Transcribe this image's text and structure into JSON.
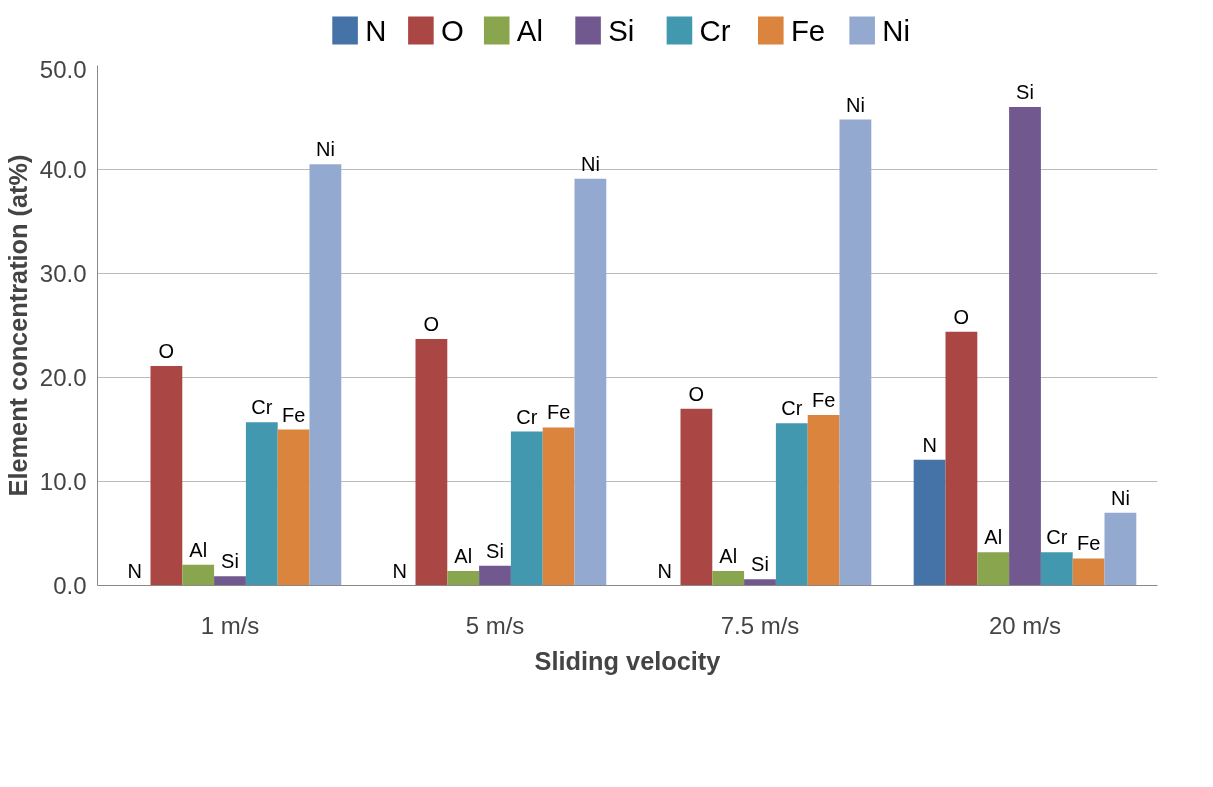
{
  "chart_data": {
    "type": "bar",
    "xlabel": "Sliding velocity",
    "ylabel": "Element concentration (at%)",
    "categories": [
      "1 m/s",
      "5 m/s",
      "7.5 m/s",
      "20 m/s"
    ],
    "series": [
      {
        "name": "N",
        "color": "#4572a7",
        "values": [
          0,
          0,
          0,
          12.1
        ]
      },
      {
        "name": "O",
        "color": "#aa4643",
        "values": [
          21.1,
          23.7,
          17.0,
          24.4
        ]
      },
      {
        "name": "Al",
        "color": "#89a54e",
        "values": [
          2.0,
          1.4,
          1.4,
          3.2
        ]
      },
      {
        "name": "Si",
        "color": "#71588f",
        "values": [
          0.9,
          1.9,
          0.6,
          46.0
        ]
      },
      {
        "name": "Cr",
        "color": "#4198af",
        "values": [
          15.7,
          14.8,
          15.6,
          3.2
        ]
      },
      {
        "name": "Fe",
        "color": "#db843d",
        "values": [
          15.0,
          15.2,
          16.4,
          2.6
        ]
      },
      {
        "name": "Ni",
        "color": "#93a9cf",
        "values": [
          40.5,
          39.1,
          44.8,
          7.0
        ]
      }
    ],
    "ylim": [
      0,
      50
    ],
    "yticks": [
      {
        "value": 0,
        "label": "0.0"
      },
      {
        "value": 10,
        "label": "10.0"
      },
      {
        "value": 20,
        "label": "20.0"
      },
      {
        "value": 30,
        "label": "30.0"
      },
      {
        "value": 40,
        "label": "40.0"
      },
      {
        "value": 50,
        "label": "50.0"
      }
    ],
    "grid": "y",
    "legend": "top"
  }
}
